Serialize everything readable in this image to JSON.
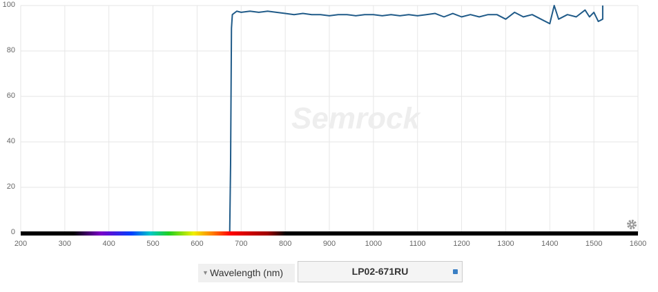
{
  "chart_data": {
    "type": "line",
    "watermark": "Semrock",
    "x_label": "Wavelength (nm)",
    "x": [
      662,
      674,
      676,
      678,
      680,
      690,
      700,
      720,
      740,
      760,
      780,
      800,
      820,
      840,
      860,
      880,
      900,
      920,
      940,
      960,
      980,
      1000,
      1020,
      1040,
      1060,
      1080,
      1100,
      1120,
      1140,
      1160,
      1180,
      1200,
      1220,
      1240,
      1260,
      1280,
      1300,
      1320,
      1340,
      1360,
      1380,
      1400,
      1410,
      1420,
      1440,
      1460,
      1480,
      1490,
      1500,
      1510,
      1520,
      1520
    ],
    "series": [
      {
        "name": "LP02-671RU",
        "color": "#1f5a88",
        "values": [
          0,
          0,
          30,
          90,
          96,
          97.5,
          97,
          97.5,
          97,
          97.5,
          97,
          96.5,
          96,
          96.5,
          96,
          96,
          95.5,
          96,
          96,
          95.5,
          96,
          96,
          95.5,
          96,
          95.5,
          96,
          95.5,
          96,
          96.5,
          95,
          96.5,
          95,
          96,
          95,
          96,
          96,
          94,
          97,
          95,
          96,
          94,
          92,
          100,
          94,
          96,
          95,
          98,
          95,
          97,
          93,
          94,
          100
        ]
      }
    ],
    "xlim": [
      200,
      1600
    ],
    "xticks": [
      200,
      300,
      400,
      500,
      600,
      700,
      800,
      900,
      1000,
      1100,
      1200,
      1300,
      1400,
      1500,
      1600
    ],
    "ylim": [
      0,
      100
    ],
    "yticks": [
      0,
      20,
      40,
      60,
      80,
      100
    ],
    "grid": true
  }
}
